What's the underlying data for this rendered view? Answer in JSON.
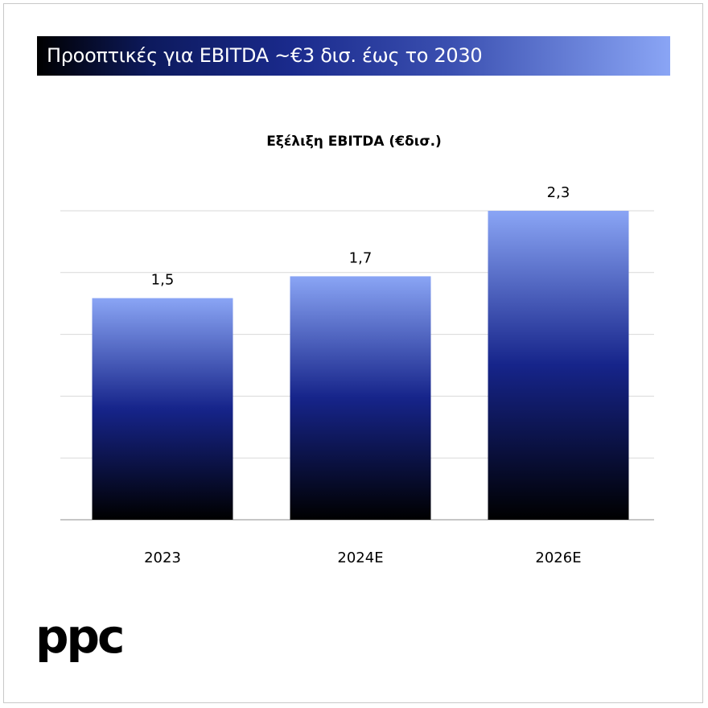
{
  "header": {
    "title": "Προοπτικές για EBITDA ~€3 δισ. έως το 2030"
  },
  "logo": {
    "text": "ppc"
  },
  "colors": {
    "bar_top": "#8aa5f5",
    "bar_mid": "#16248a",
    "bar_bottom": "#000000",
    "grid": "#d9d9d9",
    "baseline": "#8c8c8c"
  },
  "chart_data": {
    "type": "bar",
    "title": "Εξέλιξη EBITDA (€δισ.)",
    "categories": [
      "2023",
      "2024E",
      "2026E"
    ],
    "values": [
      1.5,
      1.7,
      2.3
    ],
    "data_labels": [
      "1,5",
      "1,7",
      "2,3"
    ],
    "xlabel": "",
    "ylabel": "",
    "grid": true,
    "legend": "none"
  }
}
